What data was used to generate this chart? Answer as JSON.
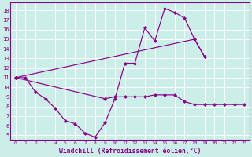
{
  "xlabel": "Windchill (Refroidissement éolien,°C)",
  "color": "#880088",
  "bg_color": "#cceee8",
  "xlim": [
    -0.5,
    23.5
  ],
  "ylim": [
    4.5,
    18.8
  ],
  "xticks": [
    0,
    1,
    2,
    3,
    4,
    5,
    6,
    7,
    8,
    9,
    10,
    11,
    12,
    13,
    14,
    15,
    16,
    17,
    18,
    19,
    20,
    21,
    22,
    23
  ],
  "yticks": [
    5,
    6,
    7,
    8,
    9,
    10,
    11,
    12,
    13,
    14,
    15,
    16,
    17,
    18
  ],
  "line1_x": [
    0,
    1,
    2,
    3,
    4,
    5,
    6,
    7,
    8,
    9,
    10,
    11,
    12,
    13,
    14,
    15,
    16,
    17,
    18,
    19,
    20,
    21,
    22,
    23
  ],
  "line1_y": [
    11,
    11,
    9.5,
    8.8,
    7.8,
    6.5,
    6.2,
    5.2,
    4.8,
    6.3,
    8.8,
    12.5,
    12.5,
    16.2,
    14.8,
    18.2,
    17.8,
    17.2,
    15.0,
    13.2,
    null,
    null,
    null,
    null
  ],
  "line2_x": [
    0,
    18,
    19,
    20,
    21,
    22,
    23
  ],
  "line2_y": [
    11,
    15.0,
    13.2,
    null,
    null,
    null,
    null
  ],
  "line3_x": [
    0,
    9,
    10,
    11,
    12,
    13,
    14,
    15,
    16,
    17,
    18,
    19,
    20,
    21,
    22,
    23
  ],
  "line3_y": [
    11,
    8.8,
    9.0,
    9.0,
    9.0,
    9.0,
    9.2,
    9.2,
    9.2,
    8.5,
    8.2,
    8.2,
    8.2,
    8.2,
    8.2,
    8.2
  ]
}
